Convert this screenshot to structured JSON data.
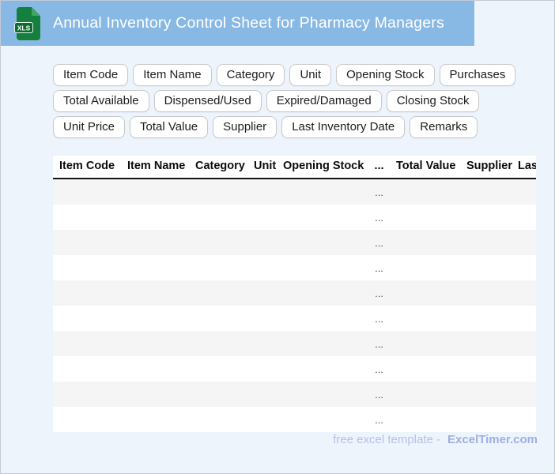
{
  "header": {
    "title": "Annual Inventory Control Sheet for Pharmacy Managers",
    "file_icon_label": "XLS"
  },
  "field_chips": [
    "Item Code",
    "Item Name",
    "Category",
    "Unit",
    "Opening Stock",
    "Purchases",
    "Total Available",
    "Dispensed/Used",
    "Expired/Damaged",
    "Closing Stock",
    "Unit Price",
    "Total Value",
    "Supplier",
    "Last Inventory Date",
    "Remarks"
  ],
  "table": {
    "columns": [
      "Item Code",
      "Item Name",
      "Category",
      "Unit",
      "Opening Stock",
      "...",
      "Total Value",
      "Supplier",
      "Last Inventory Date"
    ],
    "ellipsis_column_index": 5,
    "rows": [
      "...",
      "...",
      "...",
      "...",
      "...",
      "...",
      "...",
      "...",
      "...",
      "..."
    ]
  },
  "footer": {
    "text": "free excel template -",
    "brand": "ExcelTimer.com"
  },
  "colors": {
    "header_bar": "#88B8E4",
    "page_bg": "#EDF4FC",
    "row_stripe": "#F5F5F6",
    "icon_body": "#15803D",
    "icon_fold": "#3FA465",
    "icon_label_bg": "#0B6B2F",
    "footer_text": "#B6C0E8",
    "footer_brand": "#9FAFE0",
    "title_text": "#FFFFFF"
  }
}
